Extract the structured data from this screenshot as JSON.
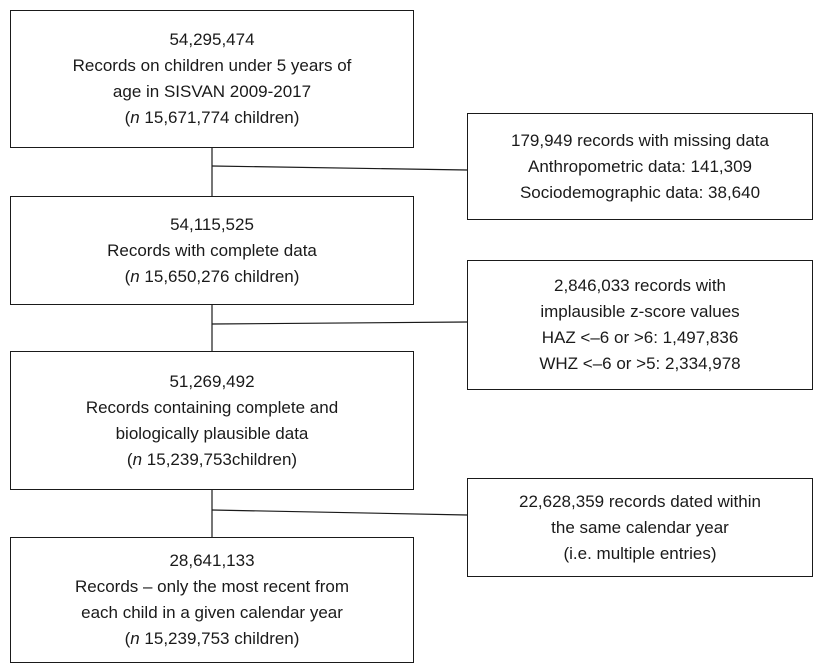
{
  "main_boxes": [
    {
      "count": "54,295,474",
      "lines": [
        "Records on children under 5 years of",
        "age in SISVAN 2009-2017"
      ],
      "n_prefix": "(",
      "n_italic": "n",
      "n_text": " 15,671,774 children)"
    },
    {
      "count": "54,115,525",
      "lines": [
        "Records with complete data"
      ],
      "n_prefix": "(",
      "n_italic": "n",
      "n_text": " 15,650,276 children)"
    },
    {
      "count": "51,269,492",
      "lines": [
        "Records containing complete and",
        "biologically plausible data"
      ],
      "n_prefix": "(",
      "n_italic": "n",
      "n_text": " 15,239,753children)"
    },
    {
      "count": "28,641,133",
      "lines": [
        "Records – only the most recent from",
        "each child in a given calendar year"
      ],
      "n_prefix": "(",
      "n_italic": "n",
      "n_text": " 15,239,753 children)"
    }
  ],
  "exclusion_boxes": [
    {
      "lines": [
        "179,949 records with missing data",
        "Anthropometric data: 141,309",
        "Sociodemographic data: 38,640"
      ]
    },
    {
      "lines": [
        "2,846,033 records with",
        "implausible z-score values",
        "HAZ <–6 or >6: 1,497,836",
        "WHZ <–6 or >5: 2,334,978"
      ]
    },
    {
      "lines": [
        "22,628,359 records dated within",
        "the same calendar year",
        "(i.e. multiple entries)"
      ]
    }
  ]
}
